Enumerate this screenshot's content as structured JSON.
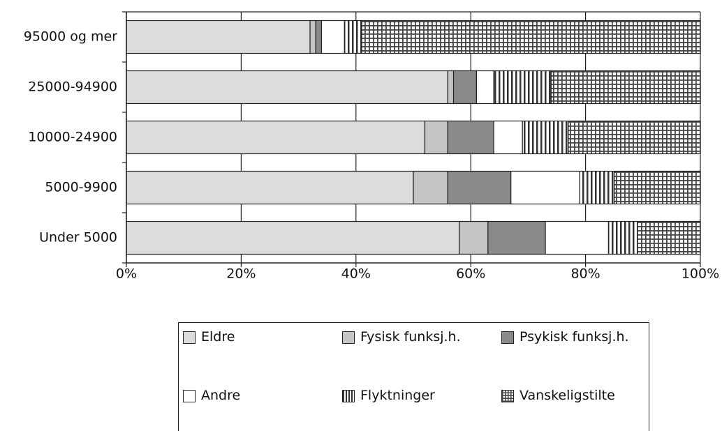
{
  "chart_data": {
    "type": "stacked-barh",
    "categories": [
      "95000 og mer",
      "25000-94900",
      "10000-24900",
      "5000-9900",
      "Under 5000"
    ],
    "series": [
      {
        "name": "Eldre",
        "color": "#dcdcdc",
        "pattern": "solid",
        "values": [
          32,
          56,
          52,
          50,
          58
        ]
      },
      {
        "name": "Fysisk funksj.h.",
        "color": "#c4c4c4",
        "pattern": "solid",
        "values": [
          1,
          1,
          4,
          6,
          5
        ]
      },
      {
        "name": "Psykisk funksj.h.",
        "color": "#8a8a8a",
        "pattern": "solid",
        "values": [
          1,
          4,
          8,
          11,
          10
        ]
      },
      {
        "name": "Andre",
        "color": "#ffffff",
        "pattern": "solid",
        "values": [
          4,
          3,
          5,
          12,
          11
        ]
      },
      {
        "name": "Flyktninger",
        "color": "#333333",
        "pattern": "vertical",
        "values": [
          3,
          10,
          8,
          6,
          5
        ]
      },
      {
        "name": "Vanskeligstilte",
        "color": "#444444",
        "pattern": "grid",
        "values": [
          59,
          26,
          23,
          15,
          11
        ]
      }
    ],
    "xlim": [
      0,
      100
    ],
    "xticks": [
      {
        "value": 0,
        "label": "0%"
      },
      {
        "value": 20,
        "label": "20%"
      },
      {
        "value": 40,
        "label": "40%"
      },
      {
        "value": 60,
        "label": "60%"
      },
      {
        "value": 80,
        "label": "80%"
      },
      {
        "value": 100,
        "label": "100%"
      }
    ],
    "grid": true
  }
}
